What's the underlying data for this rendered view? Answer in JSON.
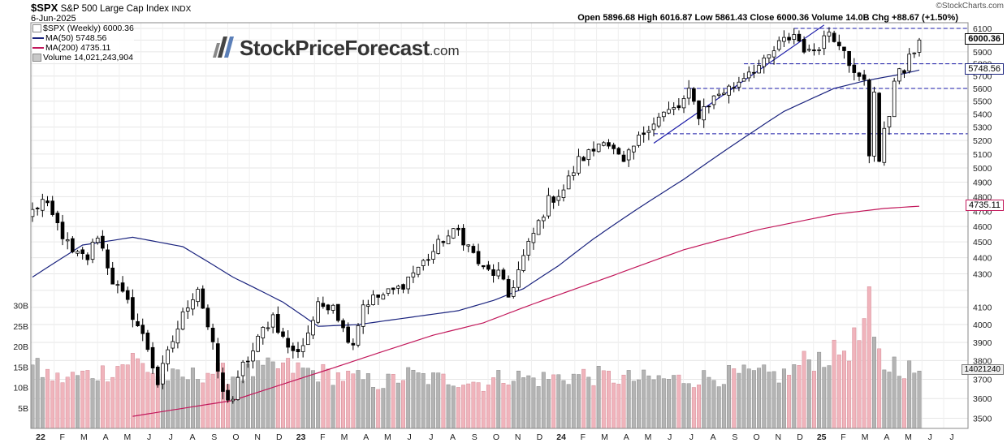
{
  "header": {
    "symbol": "$SPX",
    "name": "S&P 500 Large Cap Index",
    "exchange": "INDX",
    "date": "6-Jun-2025",
    "ohlc_text": "Open 5896.68  High 6016.87  Low 5861.43  Close 6000.36  Volume 14.0B  Chg +88.67 (+1.50%)",
    "watermark": "©StockCharts.com"
  },
  "legend": {
    "main": "$SPX (Weekly) 6000.36",
    "ma50": "MA(50) 5748.56",
    "ma200": "MA(200) 4735.11",
    "volume": "Volume 14,021,243,904"
  },
  "brand": {
    "main": "StockPriceForecast",
    "tld": ".com"
  },
  "badges": {
    "close": "6000.36",
    "ma50": "5748.56",
    "ma200": "4735.11",
    "volume": "14021240"
  },
  "colors": {
    "ma50": "#1a237e",
    "ma200": "#c2185b",
    "trend": "#1a1aa8",
    "vol_up": "#b4b4b4",
    "vol_down": "#f0b4bc"
  },
  "chart_data": {
    "type": "candlestick",
    "timeframe": "weekly",
    "price_axis": {
      "scale": "log",
      "ticks": [
        3500,
        3600,
        3700,
        3800,
        3900,
        4000,
        4100,
        4200,
        4300,
        4400,
        4500,
        4600,
        4700,
        4800,
        4900,
        5000,
        5100,
        5200,
        5300,
        5400,
        5500,
        5600,
        5700,
        5800,
        5900,
        6000,
        6100
      ],
      "tick_labels": [
        "3500",
        "3600",
        "3700",
        "3800",
        "3900",
        "4000",
        "4100",
        "",
        "4300",
        "4400",
        "4500",
        "4600",
        "4700",
        "4800",
        "4900",
        "5000",
        "5100",
        "5200",
        "5300",
        "5400",
        "5500",
        "5600",
        "5700",
        "5800",
        "5900",
        "",
        "6100"
      ]
    },
    "volume_axis": {
      "ticks": [
        5,
        10,
        15,
        20,
        25,
        30
      ],
      "tick_labels": [
        "5B",
        "10B",
        "15B",
        "20B",
        "25B",
        "30B"
      ]
    },
    "x_axis_labels": [
      "22",
      "F",
      "M",
      "A",
      "M",
      "J",
      "J",
      "A",
      "S",
      "O",
      "N",
      "D",
      "23",
      "F",
      "M",
      "A",
      "M",
      "J",
      "J",
      "A",
      "S",
      "O",
      "N",
      "D",
      "24",
      "F",
      "M",
      "A",
      "M",
      "J",
      "J",
      "A",
      "S",
      "O",
      "N",
      "D",
      "25",
      "F",
      "M",
      "A",
      "M",
      "J",
      "J",
      "A"
    ],
    "close_anchors": [
      [
        0,
        4700
      ],
      [
        2,
        4770
      ],
      [
        5,
        4610
      ],
      [
        8,
        4420
      ],
      [
        11,
        4400
      ],
      [
        13,
        4550
      ],
      [
        16,
        4260
      ],
      [
        19,
        4120
      ],
      [
        23,
        3870
      ],
      [
        25,
        3680
      ],
      [
        28,
        3910
      ],
      [
        31,
        4120
      ],
      [
        33,
        4220
      ],
      [
        36,
        3870
      ],
      [
        38,
        3620
      ],
      [
        40,
        3600
      ],
      [
        42,
        3770
      ],
      [
        44,
        3850
      ],
      [
        46,
        3970
      ],
      [
        48,
        4050
      ],
      [
        50,
        3920
      ],
      [
        52,
        3840
      ],
      [
        54,
        3890
      ],
      [
        57,
        4100
      ],
      [
        60,
        4130
      ],
      [
        62,
        3970
      ],
      [
        64,
        3900
      ],
      [
        66,
        4120
      ],
      [
        68,
        4150
      ],
      [
        70,
        4170
      ],
      [
        73,
        4210
      ],
      [
        76,
        4310
      ],
      [
        79,
        4400
      ],
      [
        82,
        4520
      ],
      [
        85,
        4570
      ],
      [
        87,
        4470
      ],
      [
        90,
        4320
      ],
      [
        93,
        4300
      ],
      [
        95,
        4160
      ],
      [
        98,
        4400
      ],
      [
        100,
        4550
      ],
      [
        103,
        4770
      ],
      [
        106,
        4850
      ],
      [
        109,
        5050
      ],
      [
        112,
        5130
      ],
      [
        114,
        5230
      ],
      [
        116,
        5120
      ],
      [
        118,
        5020
      ],
      [
        120,
        5150
      ],
      [
        123,
        5320
      ],
      [
        126,
        5400
      ],
      [
        129,
        5450
      ],
      [
        131,
        5560
      ],
      [
        133,
        5400
      ],
      [
        134,
        5450
      ],
      [
        137,
        5560
      ],
      [
        140,
        5620
      ],
      [
        143,
        5750
      ],
      [
        146,
        5800
      ],
      [
        149,
        5960
      ],
      [
        152,
        6050
      ],
      [
        155,
        5880
      ],
      [
        157,
        5970
      ],
      [
        159,
        6080
      ],
      [
        160,
        6030
      ],
      [
        162,
        5950
      ],
      [
        164,
        5700
      ],
      [
        166,
        5650
      ],
      [
        167,
        5100
      ],
      [
        168,
        5600
      ],
      [
        169,
        5050
      ],
      [
        170,
        5250
      ],
      [
        171,
        5400
      ],
      [
        172,
        5700
      ],
      [
        174,
        5740
      ],
      [
        176,
        5920
      ],
      [
        177,
        6000
      ]
    ],
    "ma50_anchors": [
      [
        0,
        4280
      ],
      [
        10,
        4480
      ],
      [
        20,
        4530
      ],
      [
        30,
        4470
      ],
      [
        40,
        4280
      ],
      [
        50,
        4130
      ],
      [
        57,
        3990
      ],
      [
        65,
        4000
      ],
      [
        75,
        4040
      ],
      [
        85,
        4080
      ],
      [
        92,
        4140
      ],
      [
        98,
        4210
      ],
      [
        105,
        4350
      ],
      [
        112,
        4520
      ],
      [
        120,
        4700
      ],
      [
        130,
        4920
      ],
      [
        140,
        5170
      ],
      [
        150,
        5420
      ],
      [
        160,
        5600
      ],
      [
        166,
        5660
      ],
      [
        170,
        5690
      ],
      [
        174,
        5720
      ],
      [
        177,
        5749
      ]
    ],
    "ma200_anchors": [
      [
        20,
        3510
      ],
      [
        40,
        3590
      ],
      [
        60,
        3760
      ],
      [
        70,
        3850
      ],
      [
        80,
        3940
      ],
      [
        90,
        4010
      ],
      [
        100,
        4120
      ],
      [
        115,
        4280
      ],
      [
        130,
        4450
      ],
      [
        145,
        4580
      ],
      [
        160,
        4680
      ],
      [
        170,
        4720
      ],
      [
        177,
        4735
      ]
    ],
    "volume_anchors": [
      [
        0,
        15
      ],
      [
        5,
        12
      ],
      [
        10,
        13
      ],
      [
        15,
        14
      ],
      [
        20,
        17
      ],
      [
        25,
        13
      ],
      [
        30,
        12
      ],
      [
        35,
        14
      ],
      [
        40,
        13
      ],
      [
        45,
        14
      ],
      [
        50,
        15
      ],
      [
        55,
        14
      ],
      [
        60,
        13
      ],
      [
        65,
        12
      ],
      [
        70,
        11
      ],
      [
        75,
        13
      ],
      [
        80,
        12
      ],
      [
        85,
        12
      ],
      [
        90,
        11
      ],
      [
        95,
        13
      ],
      [
        100,
        12
      ],
      [
        110,
        13
      ],
      [
        120,
        12
      ],
      [
        130,
        12
      ],
      [
        140,
        13
      ],
      [
        150,
        13
      ],
      [
        155,
        17
      ],
      [
        160,
        18
      ],
      [
        163,
        20
      ],
      [
        165,
        22
      ],
      [
        167,
        29
      ],
      [
        168,
        20
      ],
      [
        170,
        15
      ],
      [
        172,
        16
      ],
      [
        174,
        15
      ],
      [
        176,
        14
      ],
      [
        177,
        14
      ]
    ],
    "horizontal_levels": [
      6100,
      5800,
      5600,
      5250
    ],
    "trendline": [
      [
        124,
        5180
      ],
      [
        158,
        6130
      ]
    ],
    "last_week_ohlc": {
      "open": 5896.68,
      "high": 6016.87,
      "low": 5861.43,
      "close": 6000.36,
      "volume_billion": 14.0
    }
  }
}
